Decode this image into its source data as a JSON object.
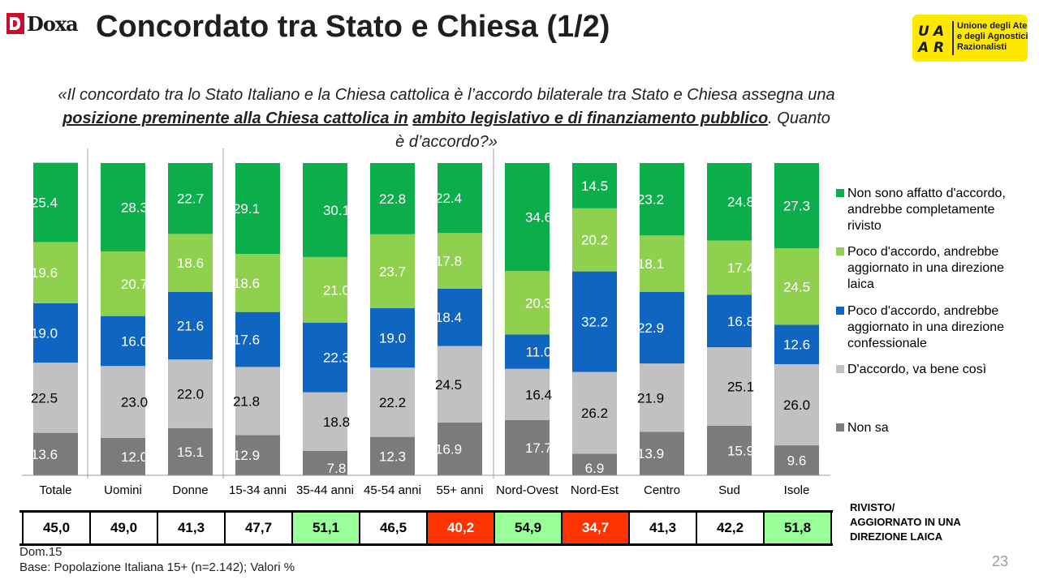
{
  "header": {
    "brand_left": "Doxa",
    "title": "Concordato tra Stato e Chiesa (1/2)",
    "brand_right_lines": [
      "Unione degli Atei",
      "e degli Agnostici",
      "Razionalisti"
    ],
    "brand_right_letters": "UAAR"
  },
  "question": {
    "prefix": "«Il concordato tra lo Stato Italiano e la Chiesa cattolica è l’accordo bilaterale tra Stato e Chiesa assegna una ",
    "underline_1": "posizione preminente alla Chiesa cattolica in",
    "gap": " ",
    "underline_2": "ambito legislativo e di finanziamento pubblico",
    "suffix": ". Quanto è d’accordo?»"
  },
  "colors": {
    "non_sono_affatto": "#0cae4b",
    "poco_laica": "#8fd14f",
    "poco_confessionale": "#0f65bf",
    "daccordo": "#c1c1c1",
    "non_sa": "#7b7b7b",
    "highlight_green": "#99ff99",
    "highlight_red": "#ff3300"
  },
  "chart_data": {
    "type": "bar",
    "stacked": true,
    "percent": true,
    "categories": [
      "Totale",
      "Uomini",
      "Donne",
      "15-34 anni",
      "35-44 anni",
      "45-54 anni",
      "55+ anni",
      "Nord-Ovest",
      "Nord-Est",
      "Centro",
      "Sud",
      "Isole"
    ],
    "series": [
      {
        "name": "Non sa",
        "color": "#7b7b7b",
        "values": [
          13.6,
          12.0,
          15.1,
          12.9,
          7.8,
          12.3,
          16.9,
          17.7,
          6.9,
          13.9,
          15.9,
          9.6
        ]
      },
      {
        "name": "D'accordo, va bene così",
        "color": "#c1c1c1",
        "values": [
          22.5,
          23.0,
          22.0,
          21.8,
          18.8,
          22.2,
          24.5,
          16.4,
          26.2,
          21.9,
          25.1,
          26.0
        ]
      },
      {
        "name": "Poco d'accordo, andrebbe aggiornato in una direzione  confessionale",
        "color": "#0f65bf",
        "values": [
          19.0,
          16.0,
          21.6,
          17.6,
          22.3,
          19.0,
          18.4,
          11.0,
          32.2,
          22.9,
          16.8,
          12.6
        ]
      },
      {
        "name": "Poco d'accordo, andrebbe aggiornato in una direzione laica",
        "color": "#8fd14f",
        "values": [
          19.6,
          20.7,
          18.6,
          18.6,
          21.0,
          23.7,
          17.8,
          20.3,
          20.2,
          18.1,
          17.4,
          24.5
        ]
      },
      {
        "name": "Non sono affatto d'accordo, andrebbe completamente rivisto",
        "color": "#0cae4b",
        "values": [
          25.4,
          28.3,
          22.7,
          29.1,
          30.1,
          22.8,
          22.4,
          34.6,
          14.5,
          23.2,
          24.8,
          27.3
        ]
      }
    ],
    "ylim": [
      0,
      100
    ],
    "legend_position": "right",
    "grid": false
  },
  "summary": {
    "label_lines": [
      "RIVISTO/",
      "AGGIORNATO IN UNA",
      "DIREZIONE LAICA"
    ],
    "values": [
      "45,0",
      "49,0",
      "41,3",
      "47,7",
      "51,1",
      "46,5",
      "40,2",
      "54,9",
      "34,7",
      "41,3",
      "42,2",
      "51,8"
    ],
    "highlight": [
      "none",
      "none",
      "none",
      "none",
      "green",
      "none",
      "red",
      "green",
      "red",
      "none",
      "none",
      "green"
    ]
  },
  "footnote": {
    "line1": "Dom.15",
    "line2": "Base: Popolazione Italiana 15+ (n=2.142); Valori %"
  },
  "page_number": "23"
}
